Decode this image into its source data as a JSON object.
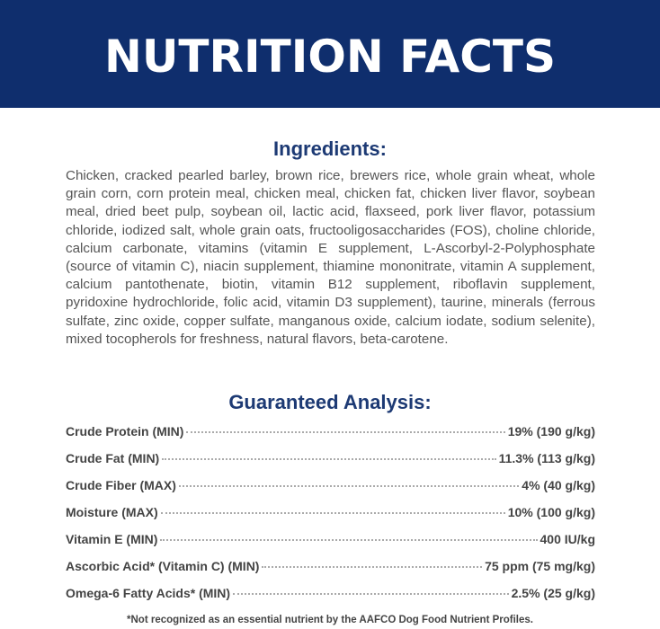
{
  "banner": {
    "title": "NUTRITION FACTS",
    "color": "#0f2e6d"
  },
  "ingredients": {
    "heading": "Ingredients:",
    "text": "Chicken, cracked pearled barley, brown rice, brewers rice, whole grain wheat, whole grain corn, corn protein meal, chicken meal, chicken fat, chicken liver flavor, soybean meal, dried beet pulp, soybean oil, lactic acid, flaxseed, pork liver flavor, potassium chloride, iodized salt, whole grain oats, fructooligosaccharides (FOS), choline chloride, calcium carbonate, vitamins (vitamin E supplement, L-Ascorbyl-2-Polyphosphate (source of vitamin C), niacin supplement, thiamine mononitrate, vitamin A supplement, calcium pantothenate, biotin, vitamin B12 supplement, riboflavin supplement, pyridoxine hydrochloride, folic acid, vitamin D3 supplement), taurine, minerals (ferrous sulfate, zinc oxide, copper sulfate, manganous oxide, calcium iodate, sodium selenite), mixed tocopherols for freshness, natural flavors, beta-carotene."
  },
  "analysis": {
    "heading": "Guaranteed Analysis:",
    "rows": [
      {
        "label": "Crude Protein (MIN)",
        "value": "19% (190 g/kg)"
      },
      {
        "label": "Crude Fat (MIN)",
        "value": "11.3% (113 g/kg)"
      },
      {
        "label": "Crude Fiber (MAX)",
        "value": "4% (40 g/kg)"
      },
      {
        "label": "Moisture (MAX)",
        "value": "10% (100 g/kg)"
      },
      {
        "label": "Vitamin E (MIN)",
        "value": "400 IU/kg"
      },
      {
        "label": "Ascorbic Acid* (Vitamin C) (MIN)",
        "value": "75 ppm (75 mg/kg)"
      },
      {
        "label": "Omega-6 Fatty Acids* (MIN)",
        "value": "2.5% (25 g/kg)"
      }
    ],
    "footnote": "*Not recognized as an essential nutrient by the AAFCO Dog Food Nutrient Profiles."
  }
}
